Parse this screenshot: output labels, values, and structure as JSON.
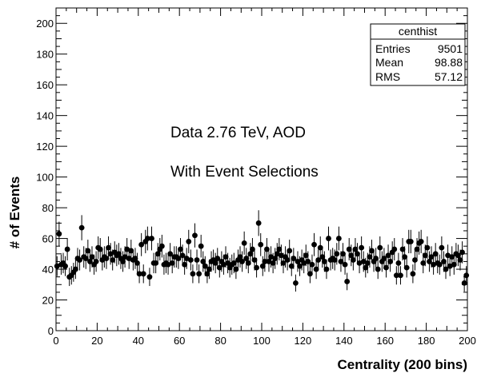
{
  "chart_data": {
    "type": "scatter",
    "style": "error-bar points",
    "xlabel": "Centrality (200 bins)",
    "ylabel": "# of Events",
    "xlim": [
      0,
      200
    ],
    "ylim": [
      0,
      210
    ],
    "xticks": [
      "0",
      "20",
      "40",
      "60",
      "80",
      "100",
      "120",
      "140",
      "160",
      "180",
      "200"
    ],
    "yticks": [
      "0",
      "20",
      "40",
      "60",
      "80",
      "100",
      "120",
      "140",
      "160",
      "180",
      "200"
    ],
    "grid": false,
    "annotations": [
      "Data 2.76 TeV,  AOD",
      "With Event Selections"
    ],
    "stats_box": {
      "title": "centhist",
      "rows": [
        {
          "label": "Entries",
          "value": "9501"
        },
        {
          "label": "Mean",
          "value": "98.88"
        },
        {
          "label": "RMS",
          "value": "57.12"
        }
      ]
    },
    "series": [
      {
        "x": [
          0.5,
          1.5,
          2.5,
          3.5,
          4.5,
          5.5,
          6.5,
          7.5,
          8.5,
          9.5,
          10.5,
          11.5,
          12.5,
          13.5,
          14.5,
          15.5,
          16.5,
          17.5,
          18.5,
          19.5,
          20.5,
          21.5,
          22.5,
          23.5,
          24.5,
          25.5,
          26.5,
          27.5,
          28.5,
          29.5,
          30.5,
          31.5,
          32.5,
          33.5,
          34.5,
          35.5,
          36.5,
          37.5,
          38.5,
          39.5,
          40.5,
          41.5,
          42.5,
          43.5,
          44.5,
          45.5,
          46.5,
          47.5,
          48.5,
          49.5,
          50.5,
          51.5,
          52.5,
          53.5,
          54.5,
          55.5,
          56.5,
          57.5,
          58.5,
          59.5,
          60.5,
          61.5,
          62.5,
          63.5,
          64.5,
          65.5,
          66.5,
          67.5,
          68.5,
          69.5,
          70.5,
          71.5,
          72.5,
          73.5,
          74.5,
          75.5,
          76.5,
          77.5,
          78.5,
          79.5,
          80.5,
          81.5,
          82.5,
          83.5,
          84.5,
          85.5,
          86.5,
          87.5,
          88.5,
          89.5,
          90.5,
          91.5,
          92.5,
          93.5,
          94.5,
          95.5,
          96.5,
          97.5,
          98.5,
          99.5,
          100.5,
          101.5,
          102.5,
          103.5,
          104.5,
          105.5,
          106.5,
          107.5,
          108.5,
          109.5,
          110.5,
          111.5,
          112.5,
          113.5,
          114.5,
          115.5,
          116.5,
          117.5,
          118.5,
          119.5,
          120.5,
          121.5,
          122.5,
          123.5,
          124.5,
          125.5,
          126.5,
          127.5,
          128.5,
          129.5,
          130.5,
          131.5,
          132.5,
          133.5,
          134.5,
          135.5,
          136.5,
          137.5,
          138.5,
          139.5,
          140.5,
          141.5,
          142.5,
          143.5,
          144.5,
          145.5,
          146.5,
          147.5,
          148.5,
          149.5,
          150.5,
          151.5,
          152.5,
          153.5,
          154.5,
          155.5,
          156.5,
          157.5,
          158.5,
          159.5,
          160.5,
          161.5,
          162.5,
          163.5,
          164.5,
          165.5,
          166.5,
          167.5,
          168.5,
          169.5,
          170.5,
          171.5,
          172.5,
          173.5,
          174.5,
          175.5,
          176.5,
          177.5,
          178.5,
          179.5,
          180.5,
          181.5,
          182.5,
          183.5,
          184.5,
          185.5,
          186.5,
          187.5,
          188.5,
          189.5,
          190.5,
          191.5,
          192.5,
          193.5,
          194.5,
          195.5,
          196.5,
          197.5,
          198.5,
          199.5
        ],
        "y": [
          42,
          63,
          43,
          44,
          42,
          53,
          35,
          36,
          38,
          40,
          47,
          46,
          67,
          48,
          47,
          52,
          45,
          48,
          43,
          45,
          54,
          53,
          46,
          48,
          47,
          54,
          50,
          46,
          51,
          49,
          50,
          47,
          45,
          48,
          53,
          47,
          52,
          46,
          47,
          44,
          37,
          56,
          37,
          58,
          60,
          35,
          60,
          44,
          44,
          50,
          53,
          55,
          43,
          44,
          43,
          50,
          44,
          48,
          48,
          47,
          53,
          49,
          43,
          47,
          58,
          46,
          37,
          62,
          46,
          37,
          55,
          45,
          42,
          37,
          40,
          45,
          46,
          44,
          47,
          41,
          45,
          43,
          48,
          44,
          41,
          43,
          44,
          40,
          46,
          48,
          45,
          57,
          47,
          44,
          50,
          53,
          46,
          41,
          70,
          56,
          42,
          45,
          53,
          45,
          48,
          44,
          47,
          50,
          53,
          49,
          44,
          48,
          46,
          52,
          42,
          47,
          31,
          45,
          42,
          46,
          44,
          49,
          45,
          37,
          43,
          56,
          40,
          46,
          54,
          48,
          45,
          40,
          60,
          46,
          47,
          46,
          50,
          60,
          45,
          50,
          43,
          32,
          53,
          49,
          46,
          53,
          50,
          44,
          54,
          45,
          41,
          44,
          48,
          52,
          45,
          47,
          40,
          54,
          45,
          47,
          41,
          49,
          45,
          51,
          53,
          36,
          44,
          36,
          53,
          48,
          41,
          58,
          58,
          37,
          46,
          53,
          57,
          58,
          44,
          49,
          54,
          45,
          48,
          43,
          50,
          44,
          43,
          54,
          45,
          40,
          49,
          42,
          48,
          43,
          50,
          49,
          46,
          51,
          31,
          36
        ]
      }
    ]
  }
}
